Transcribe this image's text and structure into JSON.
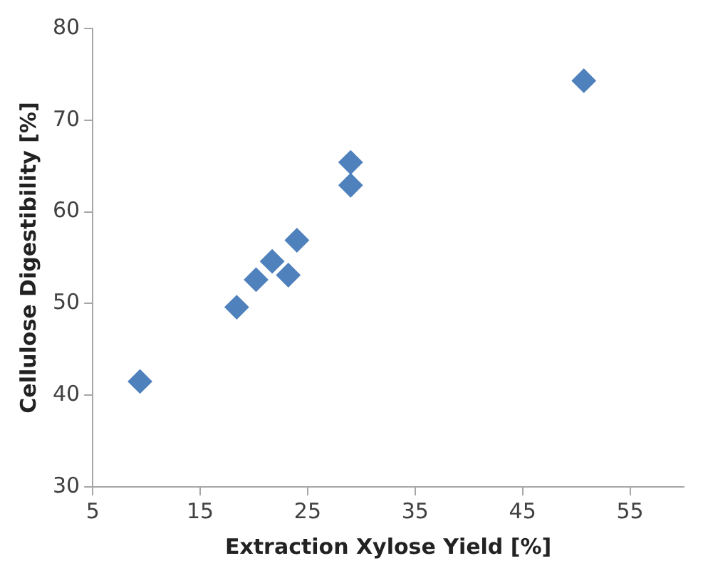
{
  "chart_data": {
    "type": "scatter",
    "xlabel": "Extraction Xylose Yield [%]",
    "ylabel": "Cellulose Digestibility [%]",
    "x": [
      9.4,
      18.4,
      20.2,
      21.7,
      23.2,
      24.0,
      29.0,
      29.0,
      50.7
    ],
    "values": [
      41.5,
      49.6,
      52.6,
      54.6,
      53.1,
      56.9,
      62.9,
      65.4,
      74.3
    ],
    "color": "#4f81bd",
    "marker": "diamond",
    "xlim": [
      5,
      60
    ],
    "xticks": [
      5,
      15,
      25,
      35,
      45,
      55
    ],
    "ylim": [
      30,
      80
    ],
    "yticks": [
      30,
      40,
      50,
      60,
      70,
      80
    ],
    "grid": false,
    "legend": false
  }
}
